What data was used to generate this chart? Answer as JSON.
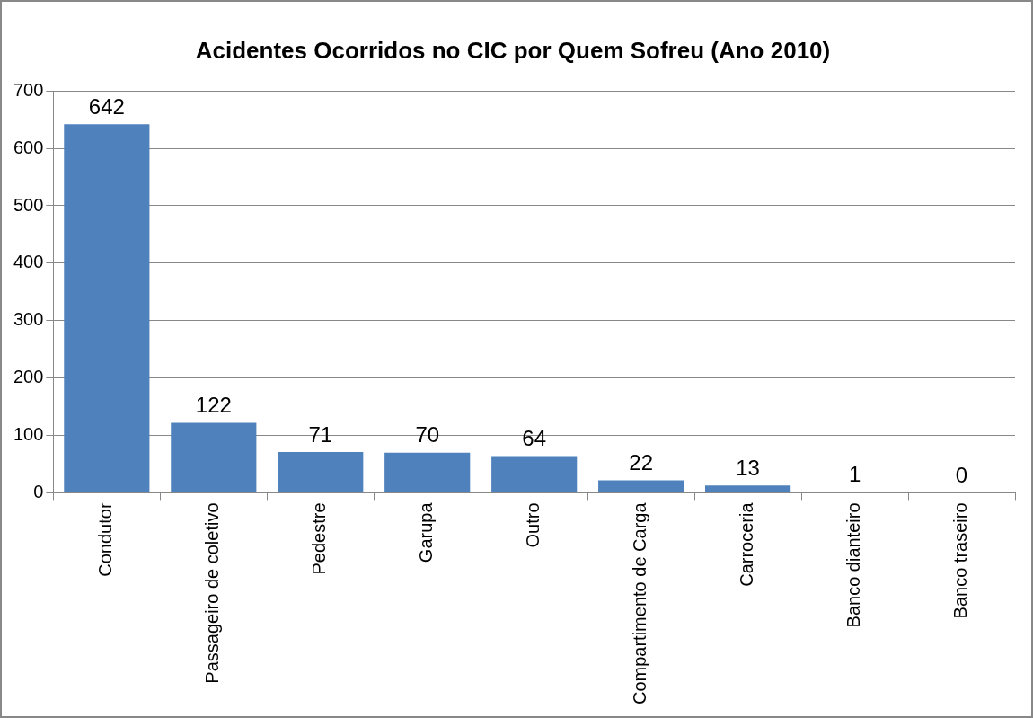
{
  "chart_data": {
    "type": "bar",
    "title": "Acidentes Ocorridos no CIC por Quem Sofreu (Ano 2010)",
    "categories": [
      "Condutor",
      "Passageiro de coletivo",
      "Pedestre",
      "Garupa",
      "Outro",
      "Compartimento de Carga",
      "Carroceria",
      "Banco dianteiro",
      "Banco traseiro"
    ],
    "values": [
      642,
      122,
      71,
      70,
      64,
      22,
      13,
      1,
      0
    ],
    "color": "#4f81bd",
    "ylim": [
      0,
      700
    ],
    "yticks": [
      0,
      100,
      200,
      300,
      400,
      500,
      600,
      700
    ],
    "grid": "y",
    "data_labels": true,
    "legend": false
  }
}
